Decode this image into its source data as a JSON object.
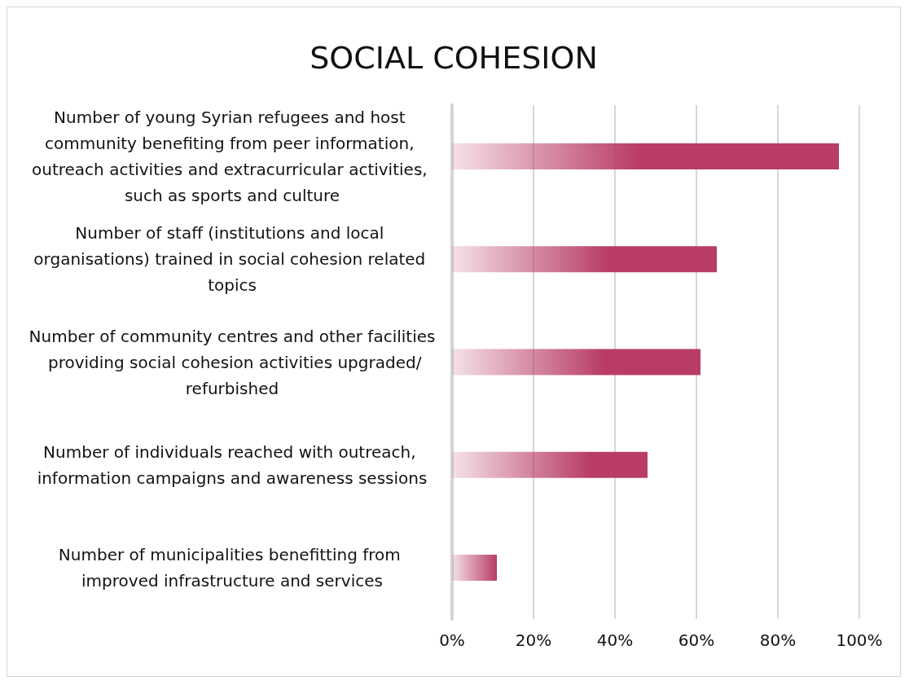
{
  "chart_data": {
    "type": "bar",
    "orientation": "horizontal",
    "title": "SOCIAL COHESION",
    "categories": [
      "Number of young Syrian refugees and host community benefiting from peer information, outreach activities and extracurricular activities, such as sports and culture",
      "Number of staff (institutions and local organisations) trained in social cohesion related topics",
      "Number of community centres and other facilities providing social cohesion activities upgraded/refurbished",
      "Number of individuals reached with outreach, information campaigns and awareness sessions",
      "Number of municipalities benefitting from improved infrastructure and services"
    ],
    "values": [
      95,
      65,
      61,
      48,
      11
    ],
    "color": "#b83c67",
    "xlim": [
      0,
      100
    ],
    "xticks": [
      {
        "value": 0,
        "label": "0%"
      },
      {
        "value": 20,
        "label": "20%"
      },
      {
        "value": 40,
        "label": "40%"
      },
      {
        "value": 60,
        "label": "60%"
      },
      {
        "value": 80,
        "label": "80%"
      },
      {
        "value": 100,
        "label": "100%"
      }
    ],
    "grid": "x"
  }
}
